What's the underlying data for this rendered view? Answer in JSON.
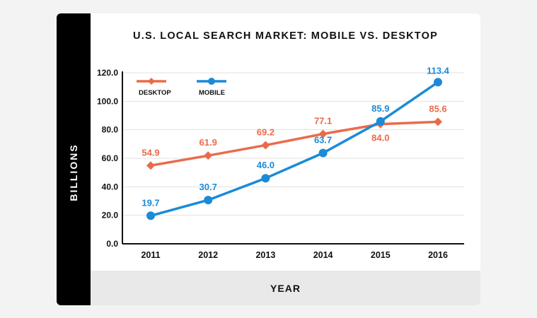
{
  "chart_data": {
    "type": "line",
    "title": "U.S. LOCAL SEARCH MARKET: MOBILE VS. DESKTOP",
    "xlabel": "YEAR",
    "ylabel": "BILLIONS",
    "categories": [
      "2011",
      "2012",
      "2013",
      "2014",
      "2015",
      "2016"
    ],
    "ylim": [
      0,
      120
    ],
    "yticks": [
      "0.0",
      "20.0",
      "40.0",
      "60.0",
      "80.0",
      "100.0",
      "120.0"
    ],
    "grid": true,
    "legend_position": "top-left",
    "series": [
      {
        "name": "DESKTOP",
        "color": "#ea6b4b",
        "marker": "diamond",
        "values": [
          54.9,
          61.9,
          69.2,
          77.1,
          84.0,
          85.6
        ],
        "labels": [
          "54.9",
          "61.9",
          "69.2",
          "77.1",
          "84.0",
          "85.6"
        ]
      },
      {
        "name": "MOBILE",
        "color": "#1b8ad8",
        "marker": "circle",
        "values": [
          19.7,
          30.7,
          46.0,
          63.7,
          85.9,
          113.4
        ],
        "labels": [
          "19.7",
          "30.7",
          "46.0",
          "63.7",
          "85.9",
          "113.4"
        ]
      }
    ]
  }
}
